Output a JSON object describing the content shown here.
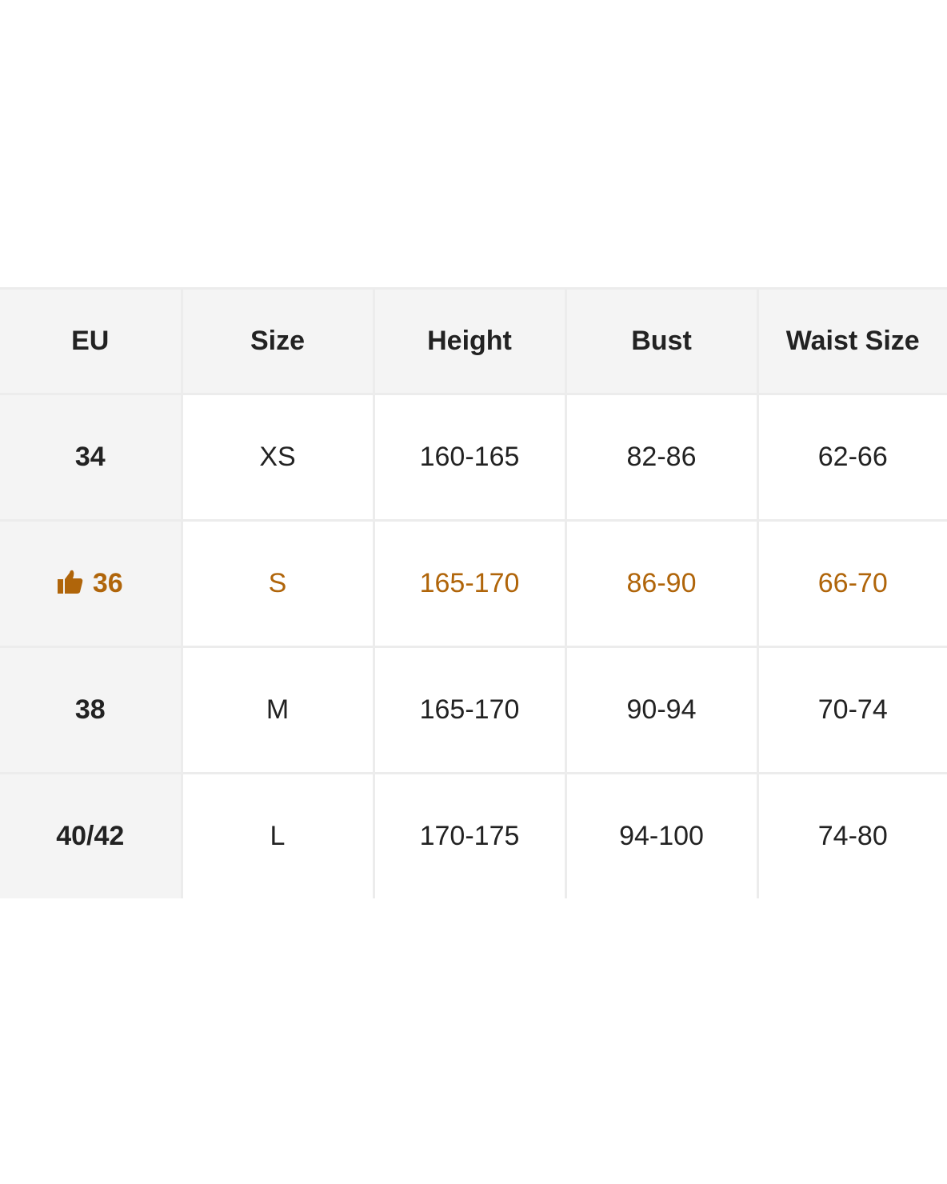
{
  "headers": [
    "EU",
    "Size",
    "Height",
    "Bust",
    "Waist Size"
  ],
  "rows": [
    {
      "eu": "34",
      "size": "XS",
      "height": "160-165",
      "bust": "82-86",
      "waist": "62-66",
      "recommended": false
    },
    {
      "eu": "36",
      "size": "S",
      "height": "165-170",
      "bust": "86-90",
      "waist": "66-70",
      "recommended": true
    },
    {
      "eu": "38",
      "size": "M",
      "height": "165-170",
      "bust": "90-94",
      "waist": "70-74",
      "recommended": false
    },
    {
      "eu": "40/42",
      "size": "L",
      "height": "170-175",
      "bust": "94-100",
      "waist": "74-80",
      "recommended": false
    }
  ],
  "highlight_color": "#b0650a",
  "recommended_icon": "thumbs-up-icon"
}
